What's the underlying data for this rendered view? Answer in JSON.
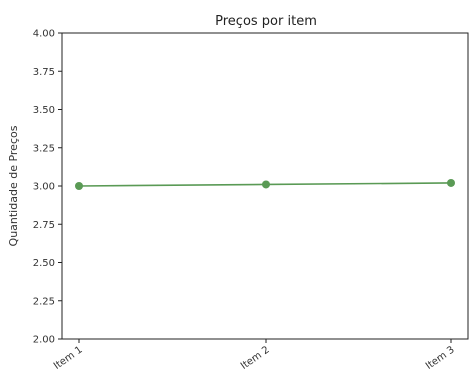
{
  "chart_data": {
    "type": "line",
    "title": "Preços por item",
    "xlabel": "",
    "ylabel": "Quantidade de Preços",
    "categories": [
      "Item 1",
      "Item 2",
      "Item 3"
    ],
    "series": [
      {
        "values": [
          3.0,
          3.01,
          3.02
        ],
        "color": "#5a9a55"
      }
    ],
    "ylim": [
      2.0,
      4.0
    ],
    "yticks": [
      "2.00",
      "2.25",
      "2.50",
      "2.75",
      "3.00",
      "3.25",
      "3.50",
      "3.75",
      "4.00"
    ],
    "grid": false,
    "legend": "none"
  }
}
